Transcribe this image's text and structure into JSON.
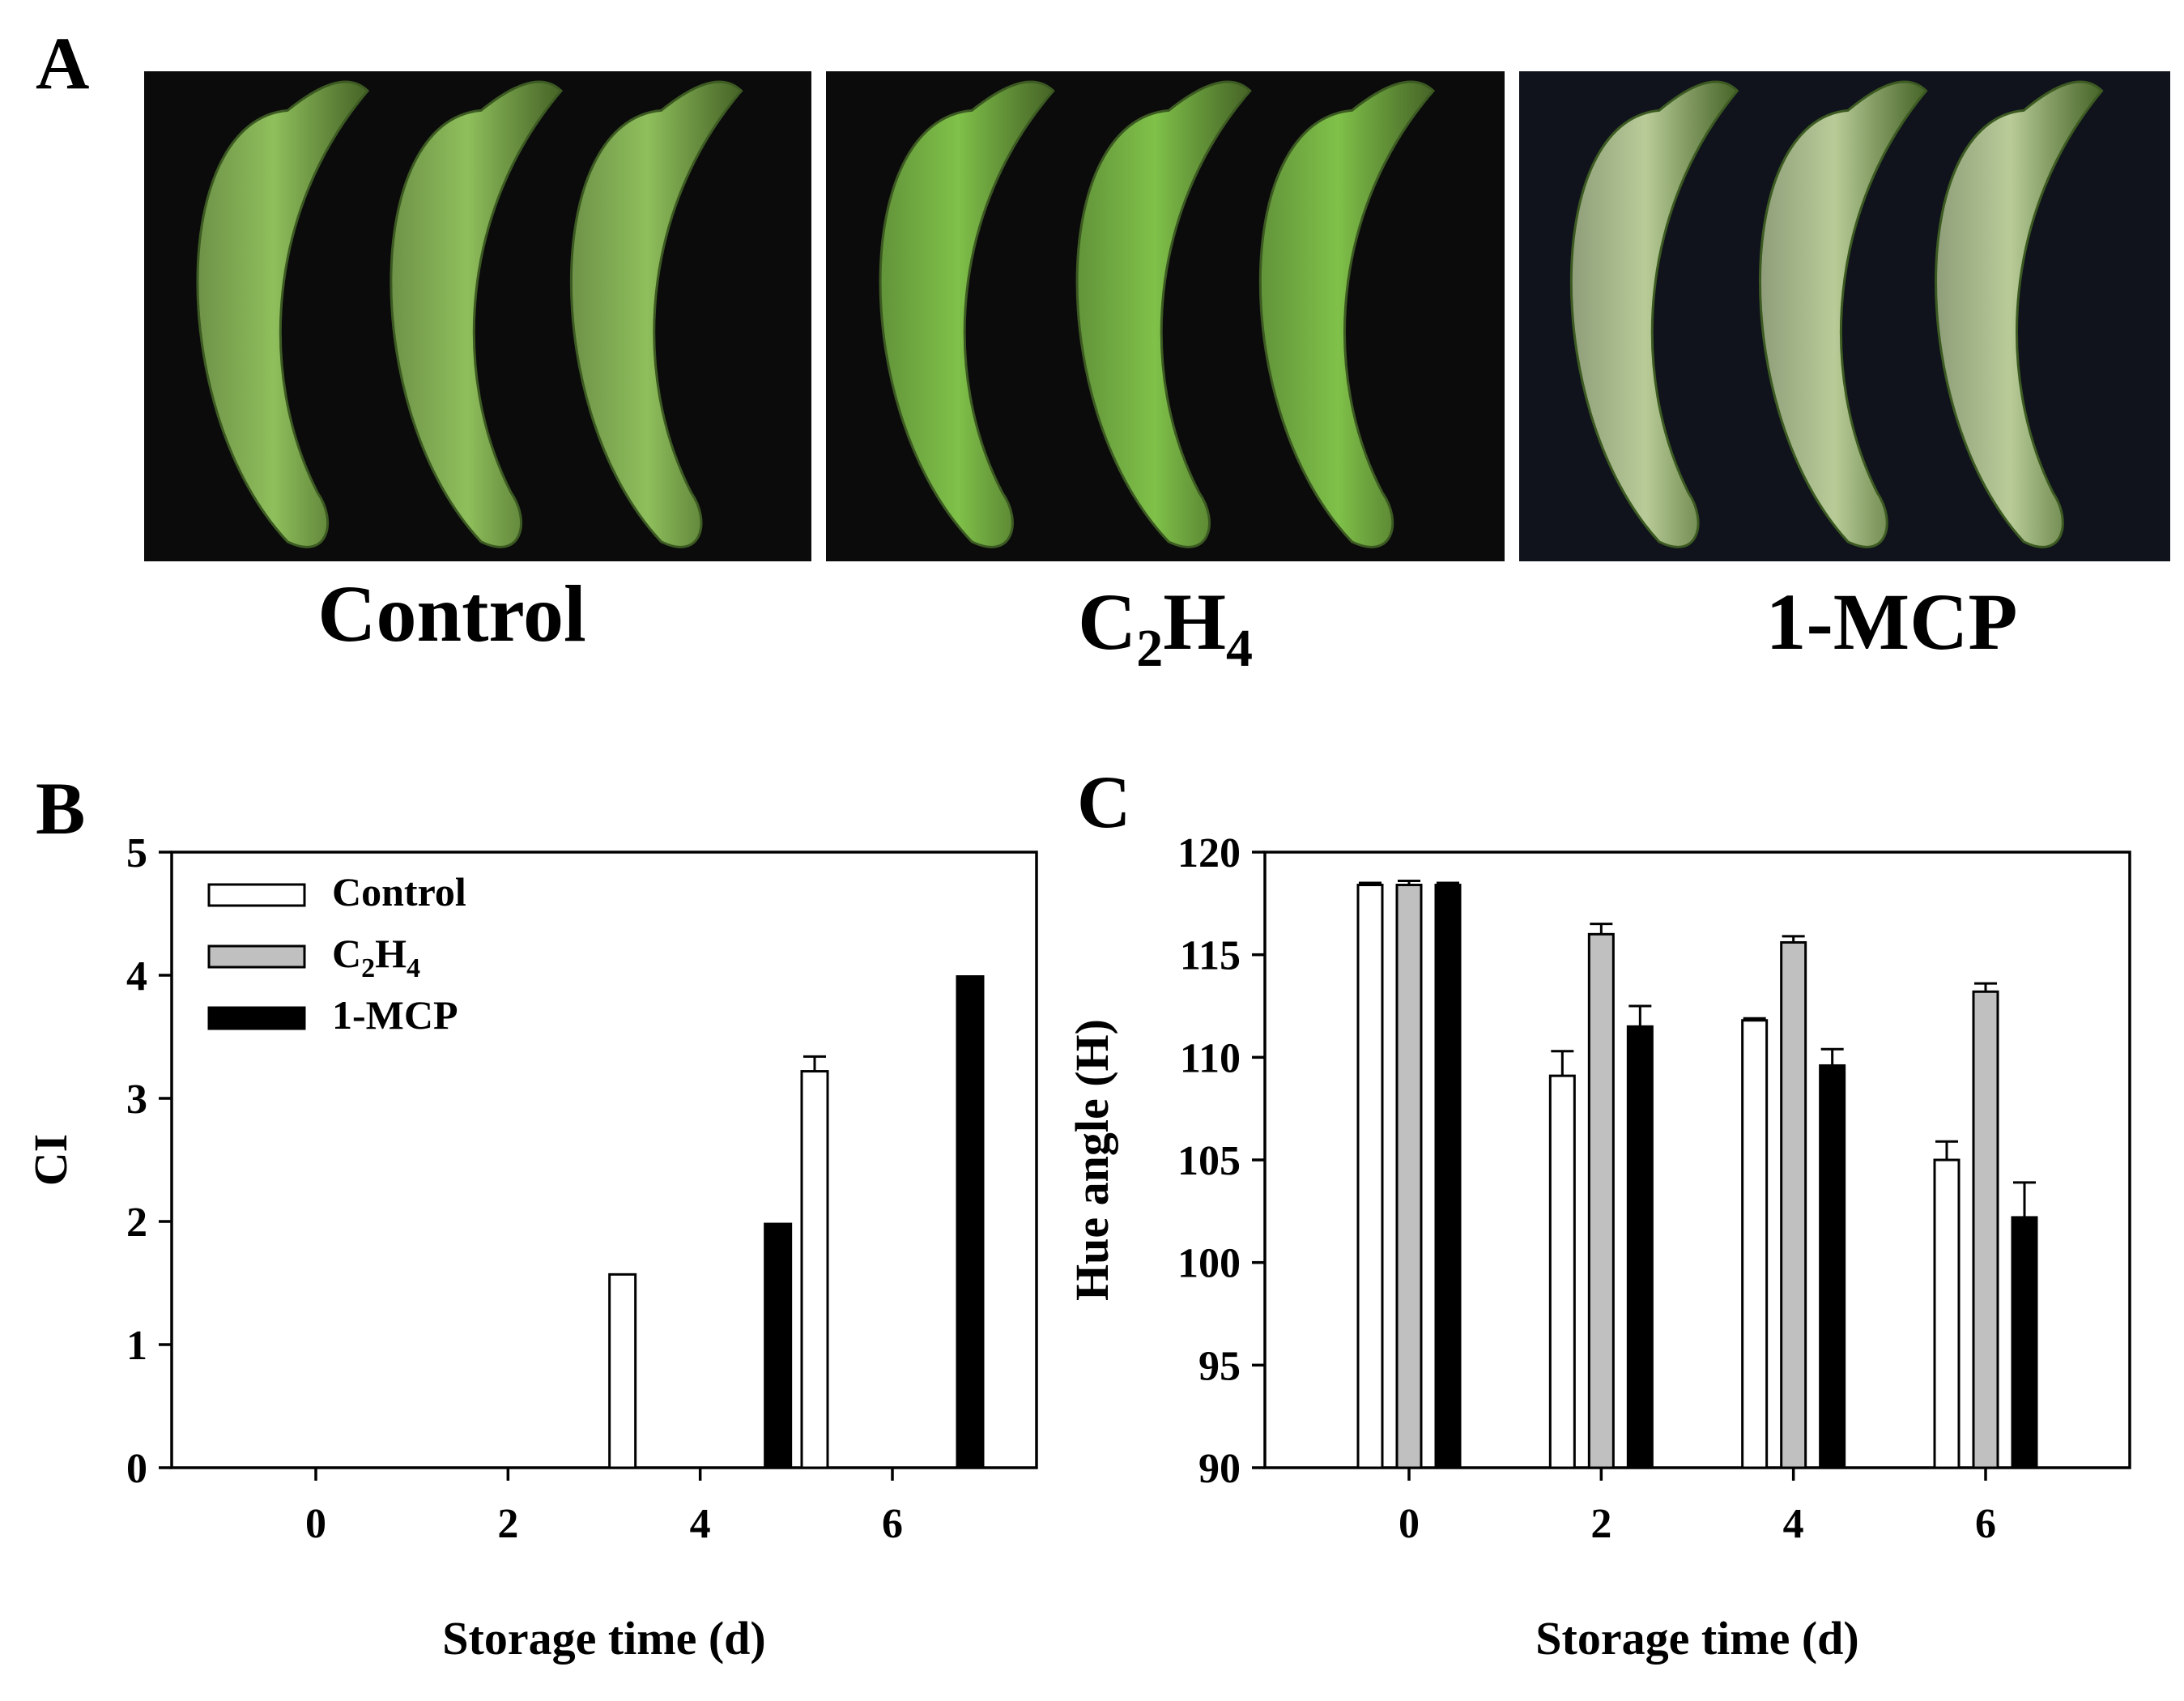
{
  "panels": {
    "a": "A",
    "b": "B",
    "c": "C"
  },
  "photos": [
    {
      "label": "Control",
      "label_sub": "",
      "label_tail": "",
      "fruit_color": "#8fbf5c",
      "bg_color": "#0b0b0b"
    },
    {
      "label": "C",
      "label_sub": "2",
      "label_tail": "H",
      "label_sub2": "4",
      "fruit_color": "#7fc149",
      "bg_color": "#0b0b0b"
    },
    {
      "label": "1-MCP",
      "label_sub": "",
      "label_tail": "",
      "fruit_color": "#b9cc98",
      "bg_color": "#10131c"
    }
  ],
  "chart_data": [
    {
      "type": "bar",
      "categories": [
        "0",
        "2",
        "4",
        "6"
      ],
      "xlabel": "Storage time (d)",
      "ylabel": "CI",
      "ylim": [
        0,
        5
      ],
      "yticks": [
        "0",
        "1",
        "2",
        "3",
        "4",
        "5"
      ],
      "legend_position": "top-left",
      "series": [
        {
          "name": "Control",
          "name_sub": "",
          "name_tail": "",
          "color": "#ffffff",
          "values": [
            0,
            0,
            1.57,
            3.22
          ],
          "errors": [
            0,
            0,
            0,
            0.12
          ]
        },
        {
          "name": "C",
          "name_sub": "2",
          "name_tail": "H",
          "name_sub2": "4",
          "color": "#c0c0c0",
          "values": [
            0,
            0,
            0,
            0
          ],
          "errors": [
            0,
            0,
            0,
            0
          ]
        },
        {
          "name": "1-MCP",
          "name_sub": "",
          "name_tail": "",
          "color": "#000000",
          "values": [
            0,
            0,
            1.98,
            3.99
          ],
          "errors": [
            0,
            0,
            0,
            0
          ]
        }
      ]
    },
    {
      "type": "bar",
      "categories": [
        "0",
        "2",
        "4",
        "6"
      ],
      "xlabel": "Storage time (d)",
      "ylabel": "Hue angle (H)",
      "ylim": [
        90,
        120
      ],
      "yticks": [
        "90",
        "95",
        "100",
        "105",
        "110",
        "115",
        "120"
      ],
      "series": [
        {
          "name": "Control",
          "color": "#ffffff",
          "values": [
            118.4,
            109.1,
            111.8,
            105.0
          ],
          "errors": [
            0.1,
            1.2,
            0.1,
            0.9
          ]
        },
        {
          "name": "C2H4",
          "color": "#c0c0c0",
          "values": [
            118.4,
            116.0,
            115.6,
            113.2
          ],
          "errors": [
            0.2,
            0.5,
            0.3,
            0.4
          ]
        },
        {
          "name": "1-MCP",
          "color": "#000000",
          "values": [
            118.4,
            111.5,
            109.6,
            102.2
          ],
          "errors": [
            0.1,
            1.0,
            0.8,
            1.7
          ]
        }
      ]
    }
  ]
}
